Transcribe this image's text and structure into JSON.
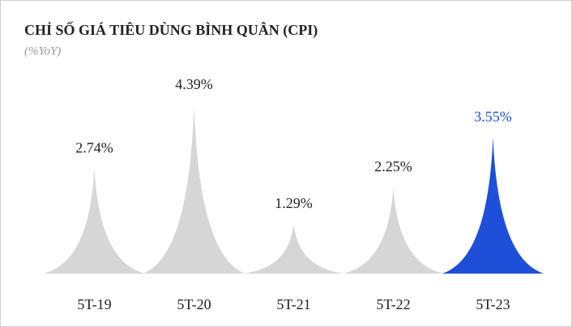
{
  "chart_data": {
    "type": "bar",
    "title": "CHỈ SỐ GIÁ TIÊU DÙNG BÌNH QUÂN (CPI)",
    "subtitle": "(%YoY)",
    "categories": [
      "5T-19",
      "5T-20",
      "5T-21",
      "5T-22",
      "5T-23"
    ],
    "values": [
      2.74,
      4.39,
      1.29,
      2.25,
      3.55
    ],
    "value_labels": [
      "2.74%",
      "4.39%",
      "1.29%",
      "2.25%",
      "3.55%"
    ],
    "colors": [
      "#d6d6d6",
      "#d6d6d6",
      "#d6d6d6",
      "#d6d6d6",
      "#1d4fd8"
    ]
  }
}
